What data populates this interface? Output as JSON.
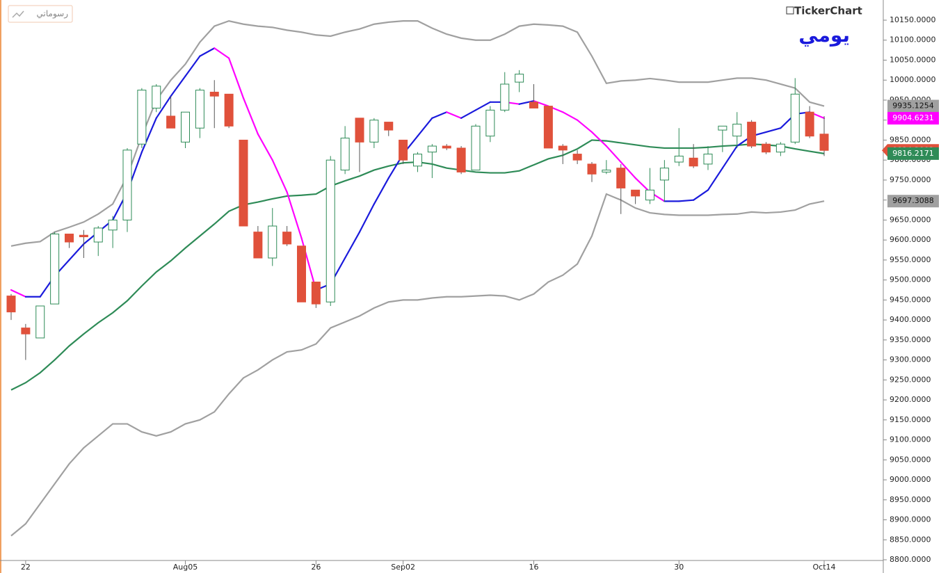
{
  "chart_data": {
    "type": "candlestick",
    "logo": "TickerChart",
    "period": "يومي",
    "drawings_button": "رسوماتي",
    "categories": [
      null,
      "22",
      null,
      null,
      null,
      null,
      null,
      null,
      null,
      null,
      null,
      null,
      "Aug05",
      null,
      null,
      null,
      null,
      null,
      null,
      null,
      null,
      "26",
      null,
      null,
      null,
      null,
      null,
      "Sep02",
      null,
      null,
      null,
      null,
      null,
      null,
      null,
      null,
      "16",
      null,
      null,
      null,
      null,
      null,
      null,
      null,
      null,
      null,
      "30",
      null,
      null,
      null,
      null,
      null,
      null,
      null,
      null,
      null,
      "Oct14"
    ],
    "open": [
      9460,
      9380,
      9355,
      9440,
      9615,
      9612,
      9595,
      9625,
      9650,
      9840,
      9930,
      9910,
      9845,
      9880,
      9970,
      9965,
      9850,
      9620,
      9555,
      9620,
      9585,
      9495,
      9445,
      9775,
      9905,
      9845,
      9895,
      9850,
      9785,
      9820,
      9835,
      9830,
      9775,
      9860,
      9925,
      9995,
      9945,
      9935,
      9835,
      9815,
      9790,
      9770,
      9780,
      9725,
      9700,
      9750,
      9795,
      9805,
      9790,
      9875,
      9860,
      9895,
      9840,
      9820,
      9845,
      9920,
      9865
    ],
    "high": [
      9465,
      9390,
      9435,
      9620,
      9615,
      9625,
      9635,
      9660,
      9830,
      9980,
      9990,
      9960,
      9920,
      9980,
      10000,
      9965,
      9850,
      9635,
      9680,
      9635,
      9585,
      9495,
      9810,
      9885,
      9905,
      9905,
      9895,
      9850,
      9820,
      9840,
      9840,
      9835,
      9890,
      9935,
      10020,
      10025,
      9990,
      9935,
      9840,
      9825,
      9795,
      9800,
      9790,
      9725,
      9780,
      9800,
      9880,
      9840,
      9835,
      9885,
      9920,
      9900,
      9845,
      9845,
      10005,
      9935,
      9910
    ],
    "low": [
      9400,
      9300,
      9355,
      9440,
      9580,
      9555,
      9560,
      9580,
      9620,
      9830,
      9920,
      9880,
      9830,
      9855,
      9880,
      9880,
      9635,
      9555,
      9535,
      9585,
      9445,
      9430,
      9435,
      9765,
      9770,
      9830,
      9860,
      9790,
      9770,
      9755,
      9825,
      9765,
      9775,
      9845,
      9920,
      9970,
      9930,
      9830,
      9790,
      9790,
      9745,
      9765,
      9665,
      9690,
      9690,
      9695,
      9785,
      9780,
      9775,
      9820,
      9830,
      9830,
      9815,
      9810,
      9840,
      9855,
      9810
    ],
    "close": [
      9420,
      9365,
      9435,
      9615,
      9595,
      9608,
      9630,
      9650,
      9825,
      9975,
      9985,
      9880,
      9920,
      9975,
      9960,
      9885,
      9635,
      9555,
      9635,
      9590,
      9445,
      9440,
      9800,
      9855,
      9845,
      9900,
      9875,
      9800,
      9815,
      9835,
      9830,
      9770,
      9885,
      9925,
      9990,
      10015,
      9930,
      9830,
      9825,
      9800,
      9765,
      9775,
      9730,
      9710,
      9725,
      9780,
      9810,
      9785,
      9815,
      9885,
      9890,
      9835,
      9820,
      9840,
      9965,
      9860,
      9824.2002
    ],
    "up_color": "#2e8b57",
    "down_color": "#e0513b",
    "close_tag_color": "#e0513b",
    "series": [
      {
        "color": "#a0a0a0",
        "values": [
          9585,
          9592,
          9596,
          9620,
          9632,
          9645,
          9665,
          9690,
          9760,
          9860,
          9950,
          10000,
          10040,
          10095,
          10135,
          10148,
          10140,
          10135,
          10132,
          10125,
          10120,
          10113,
          10110,
          10120,
          10128,
          10140,
          10145,
          10148,
          10148,
          10130,
          10115,
          10105,
          10100,
          10100,
          10115,
          10135,
          10140,
          10138,
          10135,
          10120,
          10060,
          9992,
          9998,
          10000,
          10004,
          10000,
          9995,
          9995,
          9995,
          10000,
          10005,
          10005,
          10000,
          9990,
          9980,
          9945,
          9935.1254
        ]
      },
      {
        "color": "#a0a0a0",
        "values": [
          8860,
          8890,
          8940,
          8990,
          9040,
          9080,
          9110,
          9140,
          9140,
          9120,
          9110,
          9120,
          9140,
          9150,
          9170,
          9215,
          9255,
          9275,
          9300,
          9320,
          9325,
          9340,
          9380,
          9395,
          9410,
          9430,
          9445,
          9450,
          9450,
          9455,
          9458,
          9458,
          9460,
          9462,
          9460,
          9450,
          9465,
          9495,
          9512,
          9540,
          9610,
          9715,
          9700,
          9680,
          9668,
          9664,
          9662,
          9662,
          9662,
          9664,
          9665,
          9670,
          9668,
          9670,
          9675,
          9690,
          9697.3088
        ]
      },
      {
        "color": "#2e8b57",
        "values": [
          9225,
          9243,
          9268,
          9300,
          9335,
          9365,
          9393,
          9418,
          9448,
          9485,
          9520,
          9548,
          9580,
          9610,
          9640,
          9672,
          9688,
          9695,
          9703,
          9710,
          9712,
          9715,
          9735,
          9748,
          9760,
          9775,
          9785,
          9793,
          9795,
          9790,
          9780,
          9775,
          9770,
          9768,
          9768,
          9773,
          9788,
          9803,
          9812,
          9828,
          9850,
          9848,
          9843,
          9838,
          9833,
          9830,
          9830,
          9830,
          9832,
          9835,
          9837,
          9840,
          9838,
          9835,
          9828,
          9822,
          9816.2171
        ]
      },
      {
        "color": "#1a1adc",
        "falling_color": "#ff00ff",
        "values": [
          9475,
          9458,
          9458,
          9510,
          9550,
          9590,
          9620,
          9650,
          9720,
          9820,
          9905,
          9960,
          10010,
          10060,
          10080,
          10055,
          9955,
          9865,
          9800,
          9720,
          9605,
          9475,
          9490,
          9555,
          9620,
          9690,
          9755,
          9815,
          9860,
          9905,
          9920,
          9905,
          9925,
          9945,
          9945,
          9940,
          9948,
          9935,
          9920,
          9900,
          9870,
          9835,
          9795,
          9755,
          9720,
          9697,
          9697,
          9700,
          9725,
          9780,
          9835,
          9860,
          9870,
          9880,
          9915,
          9920,
          9904.6231
        ]
      }
    ],
    "ylim": [
      8800,
      10150
    ],
    "yticks": [
      {
        "value": 8800,
        "label": "8800.0000"
      },
      {
        "value": 8850,
        "label": "8850.0000"
      },
      {
        "value": 8900,
        "label": "8900.0000"
      },
      {
        "value": 8950,
        "label": "8950.0000"
      },
      {
        "value": 9000,
        "label": "9000.0000"
      },
      {
        "value": 9050,
        "label": "9050.0000"
      },
      {
        "value": 9100,
        "label": "9100.0000"
      },
      {
        "value": 9150,
        "label": "9150.0000"
      },
      {
        "value": 9200,
        "label": "9200.0000"
      },
      {
        "value": 9250,
        "label": "9250.0000"
      },
      {
        "value": 9300,
        "label": "9300.0000"
      },
      {
        "value": 9350,
        "label": "9350.0000"
      },
      {
        "value": 9400,
        "label": "9400.0000"
      },
      {
        "value": 9450,
        "label": "9450.0000"
      },
      {
        "value": 9500,
        "label": "9500.0000"
      },
      {
        "value": 9550,
        "label": "9550.0000"
      },
      {
        "value": 9600,
        "label": "9600.0000"
      },
      {
        "value": 9650,
        "label": "9650.0000"
      },
      {
        "value": 9700,
        "label": "9700.0000"
      },
      {
        "value": 9750,
        "label": "9750.0000"
      },
      {
        "value": 9800,
        "label": "9800.0000"
      },
      {
        "value": 9850,
        "label": "9850.0000"
      },
      {
        "value": 9900,
        "label": "9900.0000"
      },
      {
        "value": 9950,
        "label": "9950.0000"
      },
      {
        "value": 10000,
        "label": "10000.0000"
      },
      {
        "value": 10050,
        "label": "10050.0000"
      },
      {
        "value": 10100,
        "label": "10100.0000"
      },
      {
        "value": 10150,
        "label": "10150.0000"
      }
    ]
  }
}
